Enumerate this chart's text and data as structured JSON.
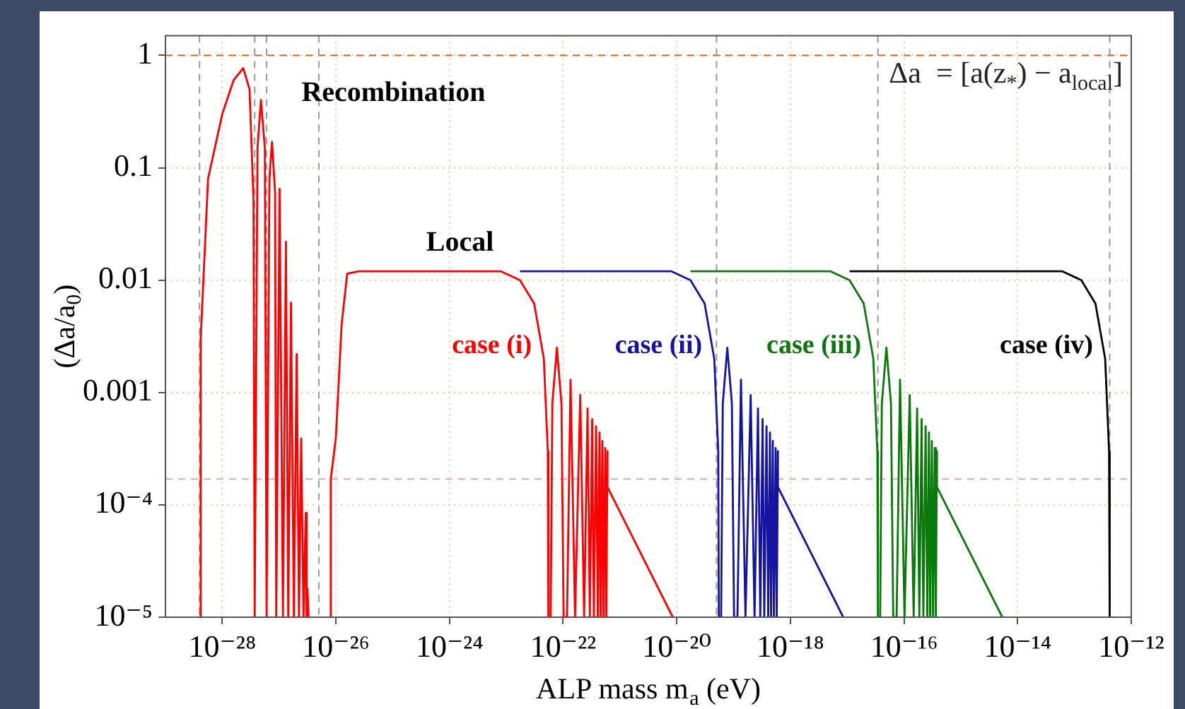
{
  "chart_data": {
    "type": "line",
    "xlabel": "ALP mass m$_{a}$ (eV)",
    "ylabel": "(Δa/a$_{0}$)",
    "log": "xy",
    "grid": true,
    "marker": "none",
    "line_style": "solid",
    "xlim": [
      1e-29,
      1e-12
    ],
    "xticks": [
      {
        "value": 1e-28,
        "label": "10⁻²⁸"
      },
      {
        "value": 1e-26,
        "label": "10⁻²⁶"
      },
      {
        "value": 1e-24,
        "label": "10⁻²⁴"
      },
      {
        "value": 1e-22,
        "label": "10⁻²²"
      },
      {
        "value": 1e-20,
        "label": "10⁻²⁰"
      },
      {
        "value": 1e-18,
        "label": "10⁻¹⁸"
      },
      {
        "value": 1e-16,
        "label": "10⁻¹⁶"
      },
      {
        "value": 1e-14,
        "label": "10⁻¹⁴"
      },
      {
        "value": 1e-12,
        "label": "10⁻¹²"
      }
    ],
    "ylim": [
      1e-05,
      1.5
    ],
    "yticks": [
      {
        "value": 1e-05,
        "label": "10⁻⁵"
      },
      {
        "value": 0.0001,
        "label": "10⁻⁴"
      },
      0.001,
      0.01,
      0.1,
      1
    ],
    "annotations": [
      "Δa  = [a(z$_{*}$) − a$_{local}$]",
      "Recombination",
      "Local"
    ],
    "ref_lines": [
      {
        "axis": "y",
        "value": 1,
        "color": "#cc6a1a",
        "line_style": "dashed"
      },
      {
        "axis": "y",
        "value": 0.00017,
        "color": "#f2a6a6",
        "line_style": "dashed"
      },
      {
        "axis": "x",
        "value": 3.98e-29,
        "color": "#9a9a9a",
        "line_style": "dashed"
      },
      {
        "axis": "x",
        "value": 3.72e-28,
        "color": "#9a9a9a",
        "line_style": "dashed"
      },
      {
        "axis": "x",
        "value": 6.03e-28,
        "color": "#9a9a9a",
        "line_style": "dashed"
      },
      {
        "axis": "x",
        "value": 5.01e-27,
        "color": "#9a9a9a",
        "line_style": "dashed"
      },
      {
        "axis": "x",
        "value": 5.01e-20,
        "color": "#9a9a9a",
        "line_style": "dashed"
      },
      {
        "axis": "x",
        "value": 3.47e-17,
        "color": "#9a9a9a",
        "line_style": "dashed"
      },
      {
        "axis": "x",
        "value": 4.17e-13,
        "color": "#9a9a9a",
        "line_style": "dashed"
      }
    ],
    "series": [
      {
        "name": "case (i)",
        "type": "line",
        "color": "#ff0000",
        "x": [
          3.98e-29,
          4.17e-29,
          5.62e-29,
          1e-28,
          1.58e-28,
          2.34e-28,
          3.02e-28,
          3.55e-28,
          3.72e-28,
          4.17e-28,
          4.79e-28,
          5.62e-28,
          6.03e-28,
          6.76e-28,
          7.5e-28,
          8.51e-28,
          8.91e-28,
          1.02e-27,
          1.17e-27,
          1.32e-27,
          1.45e-27,
          1.62e-27,
          1.82e-27,
          2.04e-27,
          2.24e-27,
          2.45e-27,
          2.69e-27,
          2.95e-27,
          3.05e-27,
          3.16e-27,
          3.31e-27,
          5.01e-27,
          8.13e-27,
          8.13e-27,
          1e-26,
          1.26e-26,
          1.58e-26,
          2.51e-26,
          7.94e-24,
          1.74e-23,
          3.09e-23,
          4.57e-23,
          5.37e-23,
          5.5e-23,
          6.03e-23,
          6.46e-23,
          7.76e-23,
          9.33e-23,
          1.02e-22,
          1.17e-22,
          1.35e-22,
          1.62e-22,
          2e-22,
          2.34e-22,
          2.69e-22,
          2.95e-22,
          3.24e-22,
          3.47e-22,
          3.8e-22,
          4.07e-22,
          4.37e-22,
          4.57e-22,
          4.9e-22,
          5.13e-22,
          5.5e-22,
          5.75e-22,
          6.03e-22,
          6.03e-22,
          8.51e-21
        ],
        "values": [
          1e-05,
          0.003,
          0.08,
          0.3,
          0.6,
          0.77,
          0.5,
          0.05,
          1e-05,
          0.15,
          0.4,
          0.15,
          1e-05,
          0.08,
          0.17,
          0.06,
          1e-05,
          0.065,
          1e-05,
          0.022,
          1e-05,
          0.0063,
          1e-05,
          0.0022,
          1e-05,
          0.00039,
          1e-05,
          8.5e-05,
          1e-05,
          1.8e-05,
          1e-05,
          null,
          1e-05,
          0.00017,
          0.0004,
          0.004,
          0.0114,
          0.012,
          0.012,
          0.01,
          0.0062,
          0.002,
          0.0003,
          1e-05,
          1e-05,
          0.0008,
          0.0025,
          0.0008,
          1e-05,
          1e-05,
          0.0013,
          1e-05,
          0.00095,
          1e-05,
          0.00072,
          1e-05,
          0.00058,
          1e-05,
          0.0005,
          1e-05,
          0.00044,
          1e-05,
          0.00037,
          1e-05,
          0.00032,
          1e-05,
          0.0003,
          0.000144,
          1e-05
        ]
      },
      {
        "name": "case (ii)",
        "type": "line",
        "color": "#1414a0",
        "x": [
          1.74e-23,
          7.94e-21,
          1.74e-20,
          3.09e-20,
          4.57e-20,
          5.37e-20,
          5.5e-20,
          6.03e-20,
          6.46e-20,
          7.76e-20,
          9.33e-20,
          1.02e-19,
          1.17e-19,
          1.35e-19,
          1.62e-19,
          2e-19,
          2.34e-19,
          2.69e-19,
          2.95e-19,
          3.24e-19,
          3.47e-19,
          3.8e-19,
          4.07e-19,
          4.37e-19,
          4.57e-19,
          4.9e-19,
          5.13e-19,
          5.5e-19,
          5.75e-19,
          6.03e-19,
          6.03e-19,
          8.51e-18
        ],
        "values": [
          0.012,
          0.012,
          0.01,
          0.0062,
          0.002,
          0.0003,
          1e-05,
          1e-05,
          0.0008,
          0.0025,
          0.0008,
          1e-05,
          1e-05,
          0.0013,
          1e-05,
          0.00095,
          1e-05,
          0.00072,
          1e-05,
          0.00058,
          1e-05,
          0.0005,
          1e-05,
          0.00044,
          1e-05,
          0.00037,
          1e-05,
          0.00032,
          1e-05,
          0.0003,
          0.000144,
          1e-05
        ]
      },
      {
        "name": "case (iii)",
        "type": "line",
        "color": "#0a780a",
        "x": [
          1.74e-20,
          5.01e-18,
          1.1e-17,
          1.95e-17,
          2.88e-17,
          3.39e-17,
          3.47e-17,
          3.8e-17,
          4.07e-17,
          4.9e-17,
          5.89e-17,
          6.46e-17,
          7.41e-17,
          8.51e-17,
          1.02e-16,
          1.26e-16,
          1.48e-16,
          1.7e-16,
          1.86e-16,
          2.04e-16,
          2.19e-16,
          2.4e-16,
          2.57e-16,
          2.75e-16,
          2.88e-16,
          3.09e-16,
          3.24e-16,
          3.47e-16,
          3.63e-16,
          3.8e-16,
          3.8e-16,
          5.37e-15
        ],
        "values": [
          0.012,
          0.012,
          0.01,
          0.0062,
          0.002,
          0.0003,
          1e-05,
          1e-05,
          0.0008,
          0.0025,
          0.0008,
          1e-05,
          1e-05,
          0.0013,
          1e-05,
          0.00095,
          1e-05,
          0.00072,
          1e-05,
          0.00058,
          1e-05,
          0.0005,
          1e-05,
          0.00044,
          1e-05,
          0.00037,
          1e-05,
          0.00032,
          1e-05,
          0.0003,
          0.000144,
          1e-05
        ]
      },
      {
        "name": "case (iv)",
        "type": "line",
        "color": "#000000",
        "x": [
          1.1e-17,
          6.03e-14,
          1.32e-13,
          2.34e-13,
          3.47e-13,
          4.07e-13,
          4.17e-13
        ],
        "values": [
          0.012,
          0.012,
          0.01,
          0.0062,
          0.002,
          0.0003,
          1e-05
        ]
      }
    ]
  }
}
